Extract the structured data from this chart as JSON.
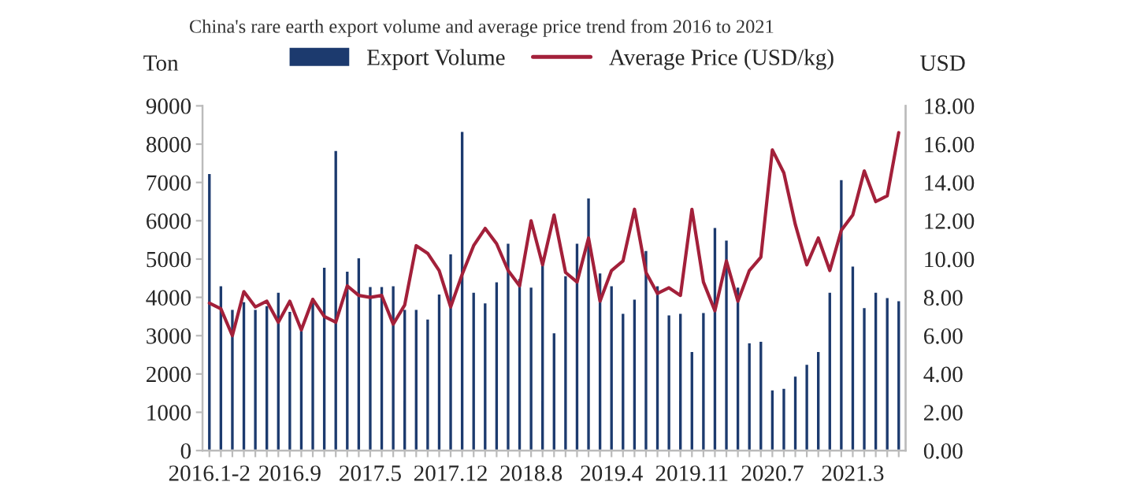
{
  "chart_data": {
    "type": "bar",
    "title": "China's rare earth export volume and average price trend from 2016 to 2021",
    "categories": [
      "2016.1-2",
      null,
      null,
      null,
      null,
      null,
      null,
      "2016.9",
      null,
      null,
      null,
      null,
      null,
      null,
      "2017.5",
      null,
      null,
      null,
      null,
      null,
      null,
      "2017.12",
      null,
      null,
      null,
      null,
      null,
      null,
      "2018.8",
      null,
      null,
      null,
      null,
      null,
      null,
      "2019.4",
      null,
      null,
      null,
      null,
      null,
      null,
      "2019.11",
      null,
      null,
      null,
      null,
      null,
      null,
      "2020.7",
      null,
      null,
      null,
      null,
      null,
      null,
      "2021.3",
      null,
      null,
      null,
      null
    ],
    "series": [
      {
        "name": "Export Volume",
        "type": "bar",
        "color": "#1c3a6e",
        "values": [
          7250,
          4320,
          3700,
          3900,
          3700,
          3800,
          4150,
          3650,
          3150,
          3900,
          4800,
          7850,
          4700,
          5050,
          4300,
          4300,
          4320,
          3700,
          3700,
          3450,
          4100,
          5150,
          8350,
          4150,
          3870,
          4420,
          5430,
          4510,
          4280,
          4900,
          3090,
          4580,
          5430,
          6610,
          4650,
          4320,
          3600,
          3970,
          5240,
          4320,
          3560,
          3600,
          2600,
          3620,
          5840,
          5510,
          4280,
          2830,
          2870,
          1600,
          1640,
          1960,
          2270,
          2600,
          4150,
          7090,
          4830,
          3750,
          4150,
          4010,
          3930
        ]
      },
      {
        "name": "Average Price (USD/kg)",
        "type": "line",
        "axis": "y2",
        "color": "#a3203a",
        "values": [
          7.7,
          7.4,
          6.0,
          8.3,
          7.5,
          7.8,
          6.7,
          7.8,
          6.3,
          7.9,
          7.0,
          6.7,
          8.6,
          8.1,
          8.0,
          8.1,
          6.6,
          7.6,
          10.7,
          10.3,
          9.4,
          7.5,
          9.2,
          10.7,
          11.6,
          10.8,
          9.4,
          8.6,
          12.0,
          9.7,
          12.3,
          9.3,
          8.8,
          11.1,
          7.8,
          9.4,
          9.9,
          12.6,
          9.3,
          8.2,
          8.5,
          8.1,
          12.6,
          8.8,
          7.3,
          9.9,
          7.8,
          9.4,
          10.1,
          15.7,
          14.5,
          11.8,
          9.7,
          11.1,
          9.4,
          11.5,
          12.3,
          14.6,
          13.0,
          13.3,
          16.6
        ]
      }
    ],
    "ylabel": "Ton",
    "y2label": "USD",
    "ylim": [
      0,
      9000
    ],
    "yticks": [
      0,
      1000,
      2000,
      3000,
      4000,
      5000,
      6000,
      7000,
      8000,
      9000
    ],
    "y2lim": [
      0,
      18
    ],
    "y2ticks": [
      {
        "value": 0,
        "label": "0.00"
      },
      {
        "value": 2,
        "label": "2.00"
      },
      {
        "value": 4,
        "label": "4.00"
      },
      {
        "value": 6,
        "label": "6.00"
      },
      {
        "value": 8,
        "label": "8.00"
      },
      {
        "value": 10,
        "label": "10.00"
      },
      {
        "value": 12,
        "label": "12.00"
      },
      {
        "value": 14,
        "label": "14.00"
      },
      {
        "value": 16,
        "label": "16.00"
      },
      {
        "value": 18,
        "label": "18.00"
      }
    ],
    "legend": "top",
    "grid": false,
    "marker": "none",
    "line_style": "solid"
  }
}
